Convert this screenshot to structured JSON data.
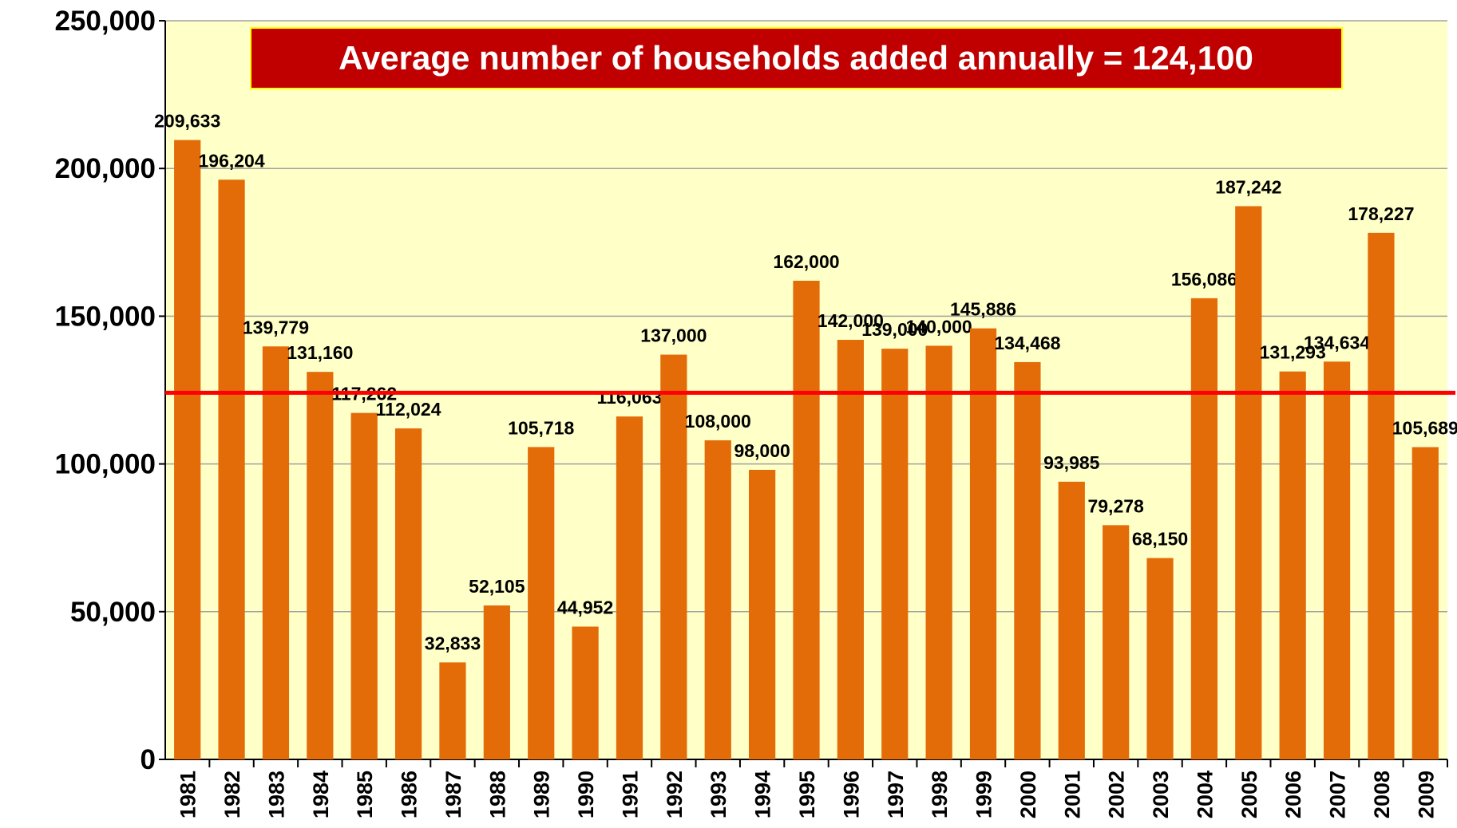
{
  "chart_data": {
    "type": "bar",
    "categories": [
      "1981",
      "1982",
      "1983",
      "1984",
      "1985",
      "1986",
      "1987",
      "1988",
      "1989",
      "1990",
      "1991",
      "1992",
      "1993",
      "1994",
      "1995",
      "1996",
      "1997",
      "1998",
      "1999",
      "2000",
      "2001",
      "2002",
      "2003",
      "2004",
      "2005",
      "2006",
      "2007",
      "2008",
      "2009"
    ],
    "values": [
      209633,
      196204,
      139779,
      131160,
      117262,
      112024,
      32833,
      52105,
      105718,
      44952,
      116063,
      137000,
      108000,
      98000,
      162000,
      142000,
      139000,
      140000,
      145886,
      134468,
      93985,
      79278,
      68150,
      156086,
      187242,
      131293,
      134634,
      178227,
      105689
    ],
    "value_labels": [
      "209,633",
      "196,204",
      "139,779",
      "131,160",
      "117,262",
      "112,024",
      "32,833",
      "52,105",
      "105,718",
      "44,952",
      "116,063",
      "137,000",
      "108,000",
      "98,000",
      "162,000",
      "142,000",
      "139,000",
      "140,000",
      "145,886",
      "134,468",
      "93,985",
      "79,278",
      "68,150",
      "156,086",
      "187,242",
      "131,293",
      "134,634",
      "178,227",
      "105,689"
    ],
    "color": "#e36c09",
    "ylim": [
      0,
      250000
    ],
    "yticks": [
      0,
      {
        "value": 50000,
        "label": "50,000"
      },
      {
        "value": 100000,
        "label": "100,000"
      },
      {
        "value": 150000,
        "label": "150,000"
      },
      {
        "value": 200000,
        "label": "200,000"
      },
      {
        "value": 250000,
        "label": "250,000"
      }
    ],
    "grid": true,
    "average_line": {
      "value": 124100,
      "label": "Average number of households added annually = 124,100",
      "color": "#ff0000"
    }
  }
}
